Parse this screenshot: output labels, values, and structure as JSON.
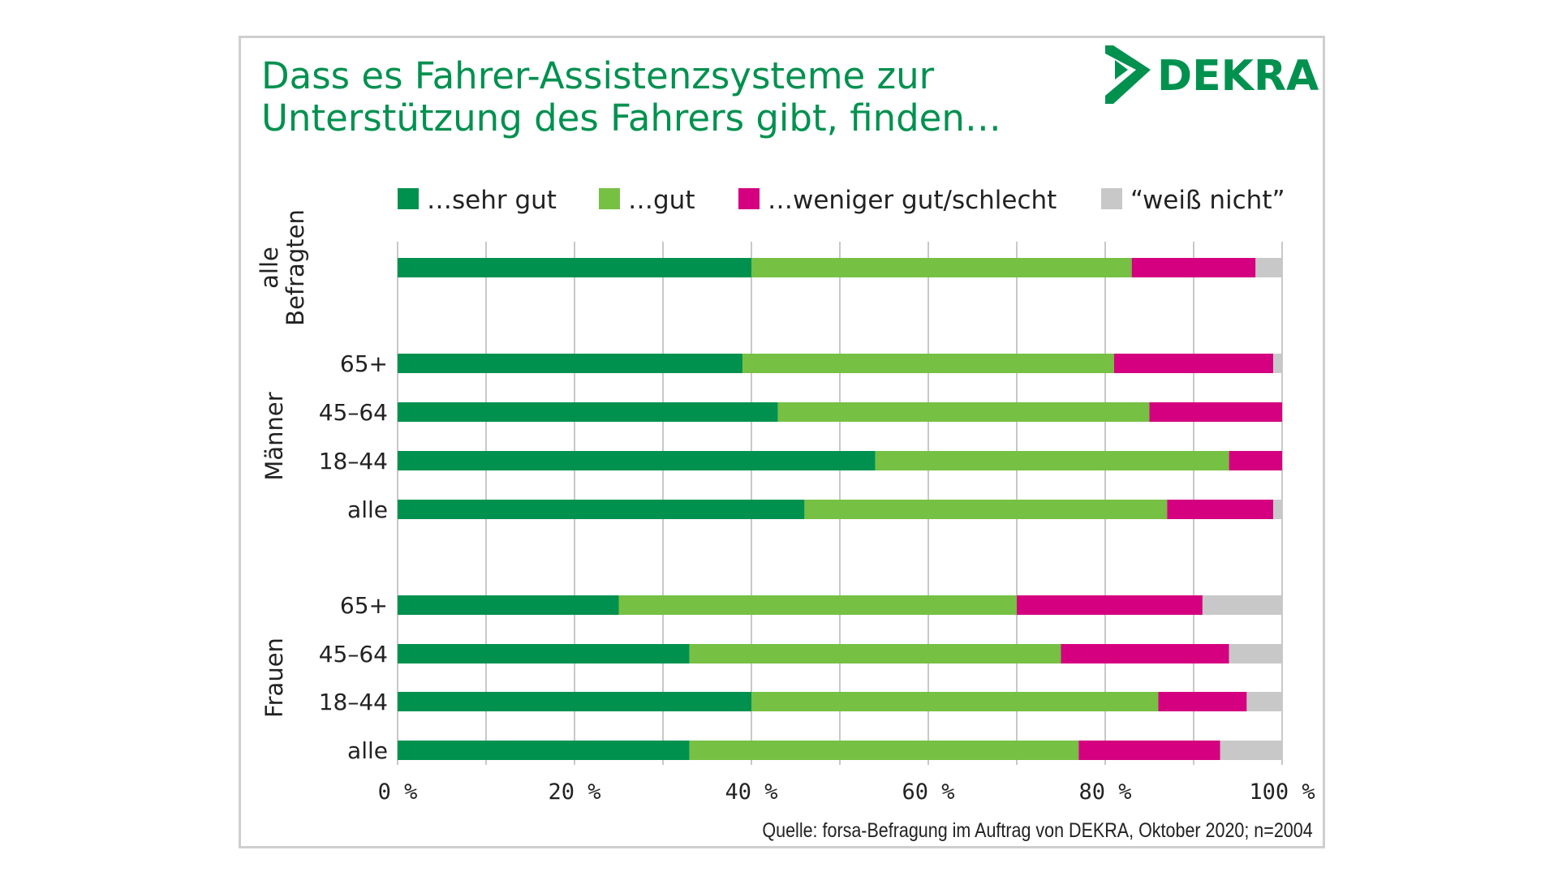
{
  "logo": {
    "text": "DEKRA",
    "color": "#00914f"
  },
  "chart_data": {
    "type": "bar",
    "orientation": "horizontal",
    "stacked": true,
    "title": [
      "Dass es Fahrer-Assistenzsysteme zur",
      "Unterstützung des Fahrers gibt, finden…"
    ],
    "xlim": [
      0,
      100
    ],
    "xticks": [
      "0 %",
      "20 %",
      "40 %",
      "60 %",
      "80 %",
      "100 %"
    ],
    "grid": true,
    "legend_position": "top",
    "series": [
      {
        "name": "…sehr gut",
        "color": "#00914f",
        "values": [
          40,
          39,
          43,
          54,
          46,
          25,
          33,
          40,
          33
        ]
      },
      {
        "name": "…gut",
        "color": "#76c043",
        "values": [
          43,
          42,
          42,
          40,
          41,
          45,
          42,
          46,
          44
        ]
      },
      {
        "name": "…weniger gut/schlecht",
        "color": "#d4007f",
        "values": [
          14,
          18,
          15,
          6,
          12,
          21,
          19,
          10,
          16
        ]
      },
      {
        "name": "“weiß nicht”",
        "color": "#c8c8c8",
        "values": [
          3,
          1,
          0,
          0,
          1,
          9,
          6,
          4,
          7
        ]
      }
    ],
    "groups": [
      {
        "label": [
          "alle",
          "Befragten"
        ],
        "rows": [
          ""
        ]
      },
      {
        "label": [
          "Männer"
        ],
        "rows": [
          "65+",
          "45–64",
          "18–44",
          "alle"
        ]
      },
      {
        "label": [
          "Frauen"
        ],
        "rows": [
          "65+",
          "45–64",
          "18–44",
          "alle"
        ]
      }
    ],
    "source": "Quelle: forsa-Befragung im Auftrag von DEKRA, Oktober 2020; n=2004"
  }
}
